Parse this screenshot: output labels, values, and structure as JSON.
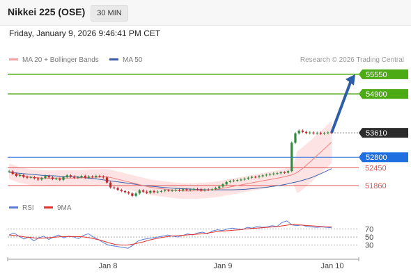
{
  "header": {
    "instrument": "Nikkei 225 (OSE)",
    "interval": "30 MIN"
  },
  "timestamp": "Friday, January 9, 2026 9:46:41 PM CET",
  "legend": {
    "ma20_bb": {
      "label": "MA 20 + Bollinger Bands",
      "color": "#f08080"
    },
    "ma50": {
      "label": "MA 50",
      "color": "#3a5fa8"
    },
    "credit": "Research © 2026 Trading Central"
  },
  "rsi_legend": {
    "rsi": {
      "label": "RSI",
      "color": "#5b7fd6"
    },
    "ma9": {
      "label": "9MA",
      "color": "#e03030"
    }
  },
  "chart_data": {
    "type": "candlestick",
    "title": "Nikkei 225 (OSE)",
    "interval": "30 MIN",
    "x_ticks": [
      "Jan 8",
      "Jan 9",
      "Jan 10"
    ],
    "price_range": [
      51400,
      55800
    ],
    "levels": [
      {
        "value": 55550,
        "label": "55550",
        "kind": "resistance",
        "color": "#4caa14"
      },
      {
        "value": 54900,
        "label": "54900",
        "kind": "resistance",
        "color": "#4caa14"
      },
      {
        "value": 53610,
        "label": "53610",
        "kind": "last",
        "color": "#333333"
      },
      {
        "value": 52800,
        "label": "52800",
        "kind": "pivot",
        "color": "#1f6fe0"
      },
      {
        "value": 52450,
        "label": "52450",
        "kind": "support",
        "color": "#e05050"
      },
      {
        "value": 51860,
        "label": "51860",
        "kind": "support",
        "color": "#e05050"
      }
    ],
    "target_arrow": {
      "from": 53610,
      "to": 55550
    },
    "close": [
      52330,
      52250,
      52180,
      52210,
      52150,
      52120,
      52140,
      52100,
      52060,
      52110,
      52180,
      52130,
      52080,
      52090,
      52050,
      52140,
      52200,
      52160,
      52120,
      52140,
      52180,
      52120,
      52160,
      52140,
      52180,
      52160,
      52130,
      51960,
      51800,
      51780,
      51720,
      51680,
      51640,
      51600,
      51520,
      51600,
      51700,
      51660,
      51620,
      51680,
      51640,
      51660,
      51680,
      51700,
      51690,
      51700,
      51720,
      51700,
      51740,
      51710,
      51730,
      51750,
      51740,
      51700,
      51730,
      51720,
      51740,
      51780,
      51830,
      51900,
      51980,
      52010,
      52030,
      52040,
      52060,
      52090,
      52120,
      52150,
      52140,
      52170,
      52200,
      52220,
      52240,
      52260,
      52270,
      52300,
      52290,
      52340,
      53280,
      53590,
      53680,
      53640,
      53600,
      53620,
      53590,
      53610,
      53580,
      53600,
      53620,
      53610
    ],
    "ma20": [
      52330,
      52280,
      52220,
      52180,
      52150,
      52130,
      52120,
      52110,
      52100,
      52100,
      52110,
      52110,
      52110,
      52110,
      52110,
      52120,
      52130,
      52140,
      52140,
      52150,
      52150,
      52120,
      52080,
      52040,
      52000,
      51960,
      51920,
      51880,
      51840,
      51800,
      51780,
      51760,
      51740,
      51720,
      51700,
      51690,
      51680,
      51680,
      51680,
      51690,
      51700,
      51710,
      51730,
      51750,
      51780,
      51810,
      51840,
      51870,
      51900,
      51930,
      51960,
      51990,
      52020,
      52050,
      52080,
      52110,
      52140,
      52180,
      52220,
      52300,
      52420,
      52560,
      52700,
      52860,
      53000,
      53150,
      53300
    ],
    "ma50": [
      52300,
      52280,
      52260,
      52240,
      52220,
      52200,
      52190,
      52180,
      52170,
      52160,
      52150,
      52130,
      52110,
      52090,
      52060,
      52030,
      52000,
      51970,
      51940,
      51910,
      51880,
      51850,
      51830,
      51810,
      51790,
      51770,
      51760,
      51750,
      51740,
      51730,
      51720,
      51720,
      51720,
      51720,
      51720,
      51730,
      51740,
      51760,
      51780,
      51800,
      51830,
      51860,
      51900,
      51950,
      52000,
      52060,
      52130,
      52220,
      52320,
      52420
    ],
    "rsi": [
      55,
      60,
      52,
      45,
      50,
      40,
      48,
      52,
      44,
      50,
      55,
      48,
      52,
      50,
      46,
      54,
      58,
      50,
      44,
      36,
      30,
      28,
      26,
      24,
      22,
      30,
      40,
      44,
      46,
      48,
      50,
      52,
      55,
      52,
      50,
      54,
      58,
      55,
      60,
      62,
      58,
      65,
      68,
      66,
      70,
      72,
      70,
      68,
      74,
      72,
      76,
      74,
      75,
      78,
      76,
      86,
      90,
      80,
      78,
      80,
      76,
      75,
      74,
      75,
      74,
      73
    ],
    "rsi_ma9": [
      55,
      54,
      52,
      50,
      49,
      47,
      47,
      48,
      49,
      50,
      51,
      51,
      51,
      51,
      50,
      48,
      45,
      42,
      38,
      34,
      31,
      30,
      30,
      32,
      35,
      38,
      42,
      45,
      48,
      50,
      52,
      53,
      54,
      55,
      56,
      57,
      58,
      60,
      62,
      64,
      65,
      66,
      67,
      68,
      70,
      71,
      72,
      73,
      74,
      75,
      76,
      78,
      80,
      81,
      80,
      79,
      78,
      77,
      76,
      75,
      75
    ],
    "rsi_levels": [
      70,
      50,
      30
    ],
    "rsi_range": [
      0,
      100
    ]
  }
}
